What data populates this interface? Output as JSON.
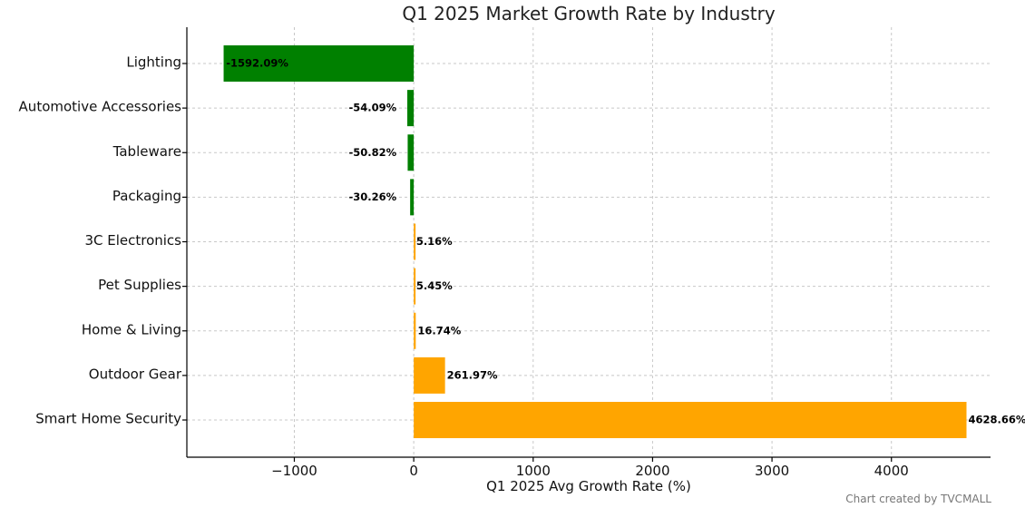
{
  "chart_data": {
    "type": "bar",
    "orientation": "horizontal",
    "title": "Q1 2025 Market Growth Rate by Industry",
    "xlabel": "Q1 2025 Avg Growth Rate (%)",
    "ylabel": "",
    "xlim": [
      -1900,
      4830
    ],
    "xticks": [
      -1000,
      0,
      1000,
      2000,
      3000,
      4000
    ],
    "xtick_labels": [
      "−1000",
      "0",
      "1000",
      "2000",
      "3000",
      "4000"
    ],
    "grid": true,
    "categories": [
      "Lighting",
      "Automotive Accessories",
      "Tableware",
      "Packaging",
      "3C Electronics",
      "Pet Supplies",
      "Home & Living",
      "Outdoor Gear",
      "Smart Home Security"
    ],
    "values": [
      -1592.09,
      -54.09,
      -50.82,
      -30.26,
      5.16,
      5.45,
      16.74,
      261.97,
      4628.66
    ],
    "data_labels": [
      "-1592.09%",
      "-54.09%",
      "-50.82%",
      "-30.26%",
      "5.16%",
      "5.45%",
      "16.74%",
      "261.97%",
      "4628.66%"
    ],
    "colors": {
      "negative": "#008000",
      "positive": "#FFA500"
    }
  },
  "credit": "Chart created by TVCMALL"
}
